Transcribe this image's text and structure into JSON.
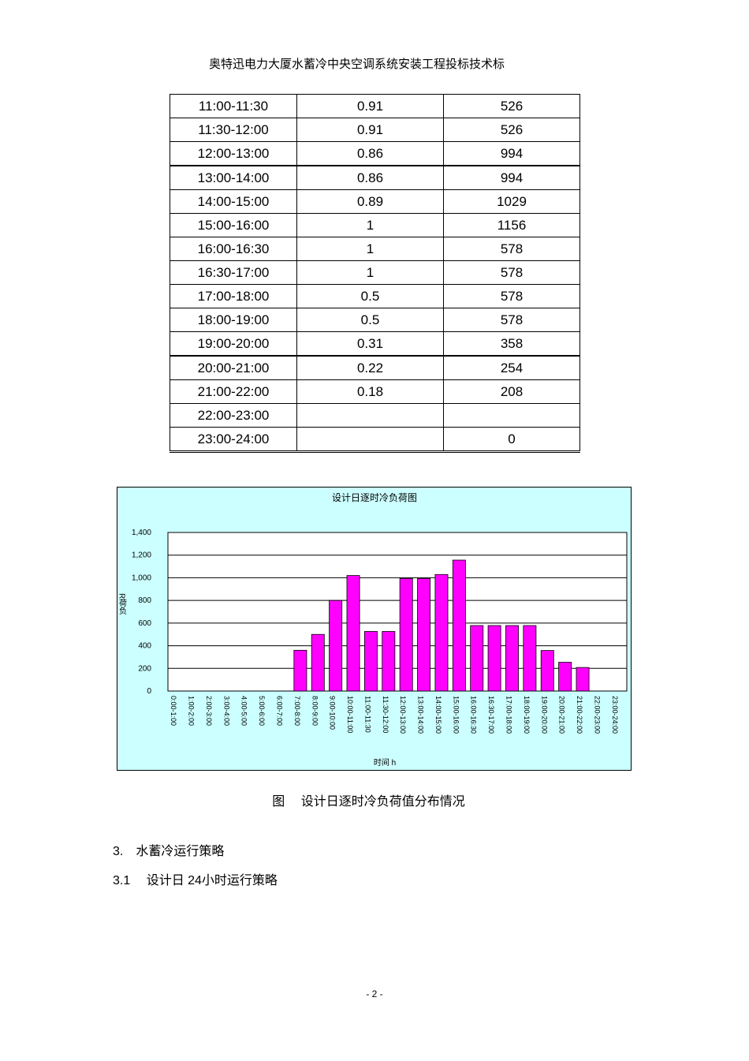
{
  "header": {
    "title": "奥特迅电力大厦水蓄冷中央空调系统安装工程投标技术标"
  },
  "table": {
    "rows": [
      [
        "11:00-11:30",
        0.91,
        526
      ],
      [
        "11:30-12:00",
        0.91,
        526
      ],
      [
        "12:00-13:00",
        0.86,
        994
      ],
      [
        "13:00-14:00",
        0.86,
        994
      ],
      [
        "14:00-15:00",
        0.89,
        1029
      ],
      [
        "15:00-16:00",
        1,
        1156
      ],
      [
        "16:00-16:30",
        1,
        578
      ],
      [
        "16:30-17:00",
        1,
        578
      ],
      [
        "17:00-18:00",
        0.5,
        578
      ],
      [
        "18:00-19:00",
        0.5,
        578
      ],
      [
        "19:00-20:00",
        0.31,
        358
      ],
      [
        "20:00-21:00",
        0.22,
        254
      ],
      [
        "21:00-22:00",
        0.18,
        208
      ],
      [
        "22:00-23:00",
        null,
        null
      ],
      [
        "23:00-24:00",
        null,
        0
      ]
    ]
  },
  "chart_data": {
    "type": "bar",
    "title": "设计日逐时冷负荷图",
    "x_label": "时间  h",
    "y_label": "R荷负",
    "categories": [
      "0:00-1:00",
      "1:00-2:00",
      "2:00-3:00",
      "3:00-4:00",
      "4:00-5:00",
      "5:00-6:00",
      "6:00-7:00",
      "7:00-8:00",
      "8:00-9:00",
      "9:00-10:00",
      "10:00-11:00",
      "11:00-11:30",
      "11:30-12:00",
      "12:00-13:00",
      "13:00-14:00",
      "14:00-15:00",
      "15:00-16:00",
      "16:00-16:30",
      "16:30-17:00",
      "17:00-18:00",
      "18:00-19:00",
      "19:00-20:00",
      "20:00-21:00",
      "21:00-22:00",
      "22:00-23:00",
      "23:00-24:00"
    ],
    "values": [
      0,
      0,
      0,
      0,
      0,
      0,
      0,
      360,
      500,
      800,
      1020,
      526,
      526,
      994,
      994,
      1029,
      1156,
      578,
      578,
      578,
      578,
      358,
      254,
      208,
      null,
      0
    ],
    "color": "#ff00ff",
    "ylim": [
      0,
      1400
    ],
    "yticks": [
      0,
      200,
      400,
      600,
      800,
      {
        "value": 1000,
        "label": "1,000"
      },
      {
        "value": 1200,
        "label": "1,200"
      },
      {
        "value": 1400,
        "label": "1,400"
      }
    ],
    "grid": true
  },
  "caption": "图　 设计日逐时冷负荷值分布情况",
  "sections": [
    "3.　水蓄冷运行策略",
    "3.1　 设计日  24小时运行策略"
  ],
  "page_number": "- 2 -"
}
